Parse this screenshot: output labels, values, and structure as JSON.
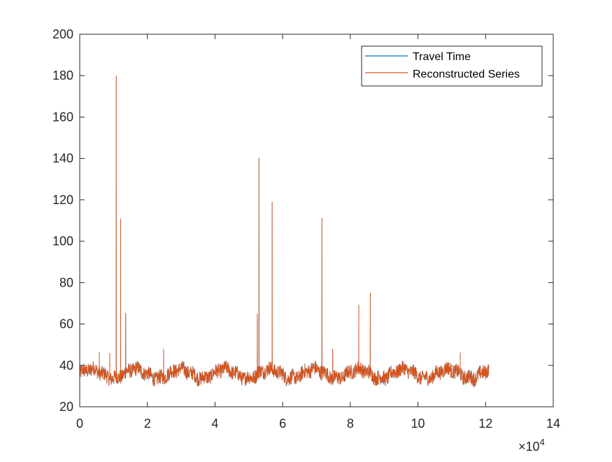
{
  "chart_data": {
    "type": "line",
    "title": "",
    "xlabel": "",
    "ylabel": "",
    "xlim": [
      0,
      140000
    ],
    "ylim": [
      20,
      200
    ],
    "x_ticks": [
      0,
      2,
      4,
      6,
      8,
      10,
      12,
      14
    ],
    "x_tick_labels": [
      "0",
      "2",
      "4",
      "6",
      "8",
      "10",
      "12",
      "14"
    ],
    "x_exponent": {
      "prefix": "×10",
      "power": "4"
    },
    "y_ticks": [
      20,
      40,
      60,
      80,
      100,
      120,
      140,
      160,
      180,
      200
    ],
    "y_tick_labels": [
      "20",
      "40",
      "60",
      "80",
      "100",
      "120",
      "140",
      "160",
      "180",
      "200"
    ],
    "grid": false,
    "legend": {
      "placement": "top-right",
      "entries": [
        "Travel Time",
        "Reconstructed Series"
      ]
    },
    "x_range_of_data": [
      0,
      121000
    ],
    "baseline_description_values": {
      "min": 30,
      "max": 42,
      "typical": 36
    },
    "spikes": [
      {
        "x": 5800,
        "y": 46
      },
      {
        "x": 8900,
        "y": 46
      },
      {
        "x": 10800,
        "y": 180
      },
      {
        "x": 12100,
        "y": 111
      },
      {
        "x": 13600,
        "y": 65
      },
      {
        "x": 24800,
        "y": 48
      },
      {
        "x": 52500,
        "y": 65
      },
      {
        "x": 53000,
        "y": 140
      },
      {
        "x": 56900,
        "y": 119
      },
      {
        "x": 71600,
        "y": 111
      },
      {
        "x": 74800,
        "y": 48
      },
      {
        "x": 82500,
        "y": 69
      },
      {
        "x": 85900,
        "y": 75
      },
      {
        "x": 112500,
        "y": 46
      }
    ],
    "series": [
      {
        "name": "Travel Time",
        "color": "#0072BD"
      },
      {
        "name": "Reconstructed Series",
        "color": "#D95319"
      }
    ]
  }
}
